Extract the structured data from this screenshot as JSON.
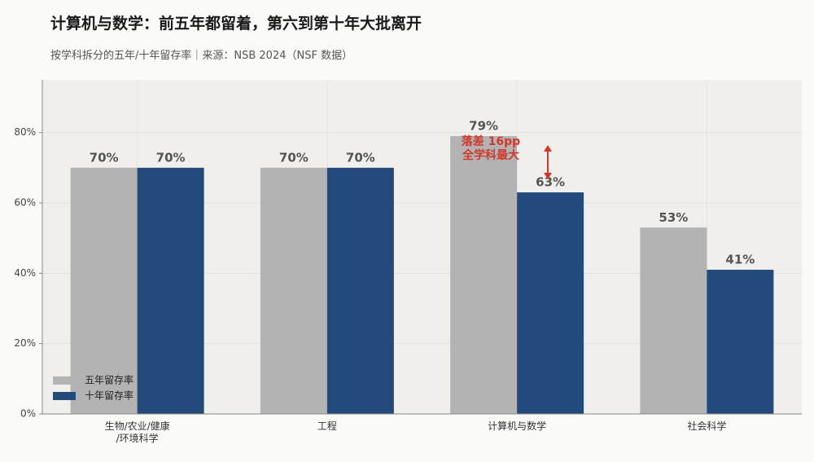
{
  "chart_data": {
    "type": "bar",
    "title": "计算机与数学：前五年都留着，第六到第十年大批离开",
    "subtitle": "按学科拆分的五年/十年留存率｜来源：NSB 2024（NSF 数据）",
    "categories": [
      "生物/农业/健康\n/环境科学",
      "工程",
      "计算机与数学",
      "社会科学"
    ],
    "series": [
      {
        "name": "五年留存率",
        "color": "#b3b3b3",
        "values": [
          70,
          70,
          79,
          53
        ],
        "value_labels": [
          "70%",
          "70%",
          "79%",
          "53%"
        ]
      },
      {
        "name": "十年留存率",
        "color": "#234a7a",
        "values": [
          70,
          70,
          63,
          41
        ],
        "value_labels": [
          "70%",
          "70%",
          "63%",
          "41%"
        ]
      }
    ],
    "ylim": [
      0,
      95
    ],
    "yticks": [
      {
        "value": 0,
        "label": "0%"
      },
      {
        "value": 20,
        "label": "20%"
      },
      {
        "value": 40,
        "label": "40%"
      },
      {
        "value": 60,
        "label": "60%"
      },
      {
        "value": 80,
        "label": "80%"
      }
    ],
    "grid": true,
    "legend": "lower-left",
    "annotation": "落差 16pp\n全学科最大",
    "annotation_color": "#d0392b"
  }
}
